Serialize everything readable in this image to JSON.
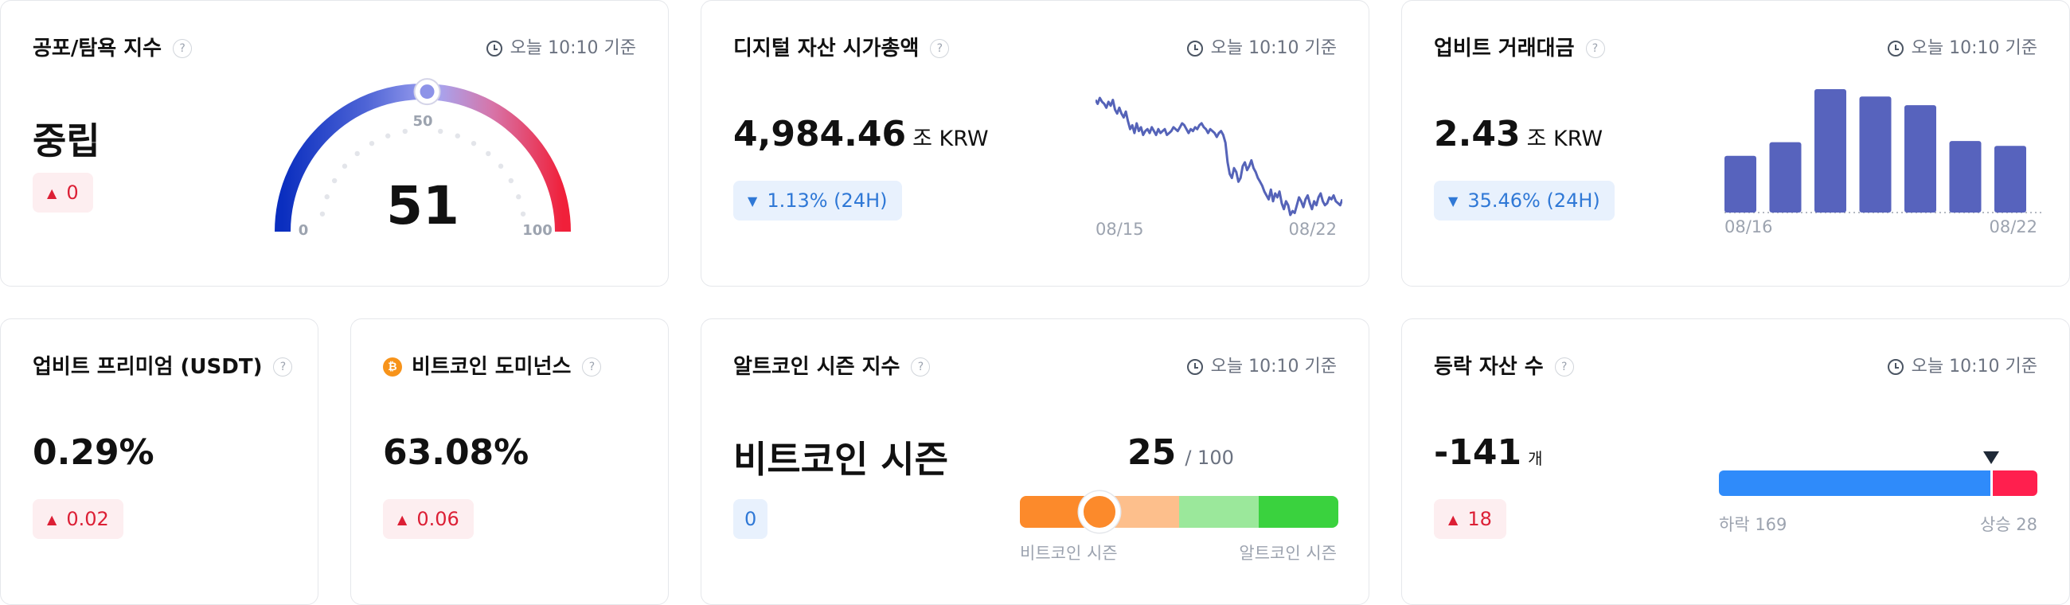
{
  "common": {
    "timestamp": "오늘 10:10 기준",
    "help": "?"
  },
  "fear_greed": {
    "title": "공포/탐욕 지수",
    "status": "중립",
    "change": "0",
    "value": "51",
    "gauge_level": 51,
    "tick_min": "0",
    "tick_mid": "50",
    "tick_max": "100"
  },
  "market_cap": {
    "title": "디지털 자산 시가총액",
    "value": "4,984.46",
    "unit": "조 KRW",
    "change": "1.13% (24H)",
    "x_start": "08/15",
    "x_end": "08/22",
    "series": [
      62,
      60,
      63,
      61,
      60,
      58,
      61,
      59,
      62,
      57,
      55,
      58,
      55,
      53,
      56,
      51,
      47,
      49,
      45,
      50,
      46,
      48,
      44,
      46,
      47,
      45,
      48,
      46,
      44,
      47,
      45,
      46,
      47,
      44,
      45,
      46,
      48,
      47,
      46,
      48,
      50,
      49,
      47,
      45,
      47,
      46,
      48,
      47,
      49,
      50,
      48,
      47,
      45,
      47,
      46,
      45,
      43,
      45,
      46,
      44,
      40,
      30,
      24,
      22,
      27,
      25,
      20,
      22,
      28,
      30,
      26,
      28,
      31,
      27,
      25,
      22,
      20,
      18,
      15,
      13,
      11,
      16,
      10,
      14,
      12,
      15,
      9,
      6,
      10,
      8,
      3,
      5,
      4,
      8,
      12,
      10,
      7,
      11,
      13,
      9,
      6,
      10,
      8,
      12,
      14,
      10,
      8,
      9,
      12,
      11,
      13,
      10,
      9,
      8,
      11
    ]
  },
  "trade_volume": {
    "title": "업비트 거래대금",
    "value": "2.43",
    "unit": "조 KRW",
    "change": "35.46% (24H)",
    "x_start": "08/16",
    "x_end": "08/22",
    "bars": [
      46,
      57,
      100,
      94,
      87,
      58,
      54
    ]
  },
  "premium": {
    "title": "업비트 프리미엄 (USDT)",
    "value": "0.29%",
    "change": "0.02"
  },
  "dominance": {
    "title": "비트코인 도미넌스",
    "btc_icon": "₿",
    "value": "63.08%",
    "change": "0.06"
  },
  "altseason": {
    "title": "알트코인 시즌 지수",
    "status": "비트코인 시즌",
    "change": "0",
    "value": "25",
    "max": "/ 100",
    "level": 25,
    "label_left": "비트코인 시즌",
    "label_right": "알트코인 시즌",
    "colors": [
      "#fc8a2b",
      "#fdbf8c",
      "#9be89b",
      "#3ad23e"
    ]
  },
  "advance_decline": {
    "title": "등락 자산 수",
    "value": "-141",
    "unit": "개",
    "change": "18",
    "down_label": "하락 169",
    "up_label": "상승 28",
    "down_count": 169,
    "up_count": 28,
    "down_color": "#2f8bfa",
    "up_color": "#ff1f4e"
  }
}
